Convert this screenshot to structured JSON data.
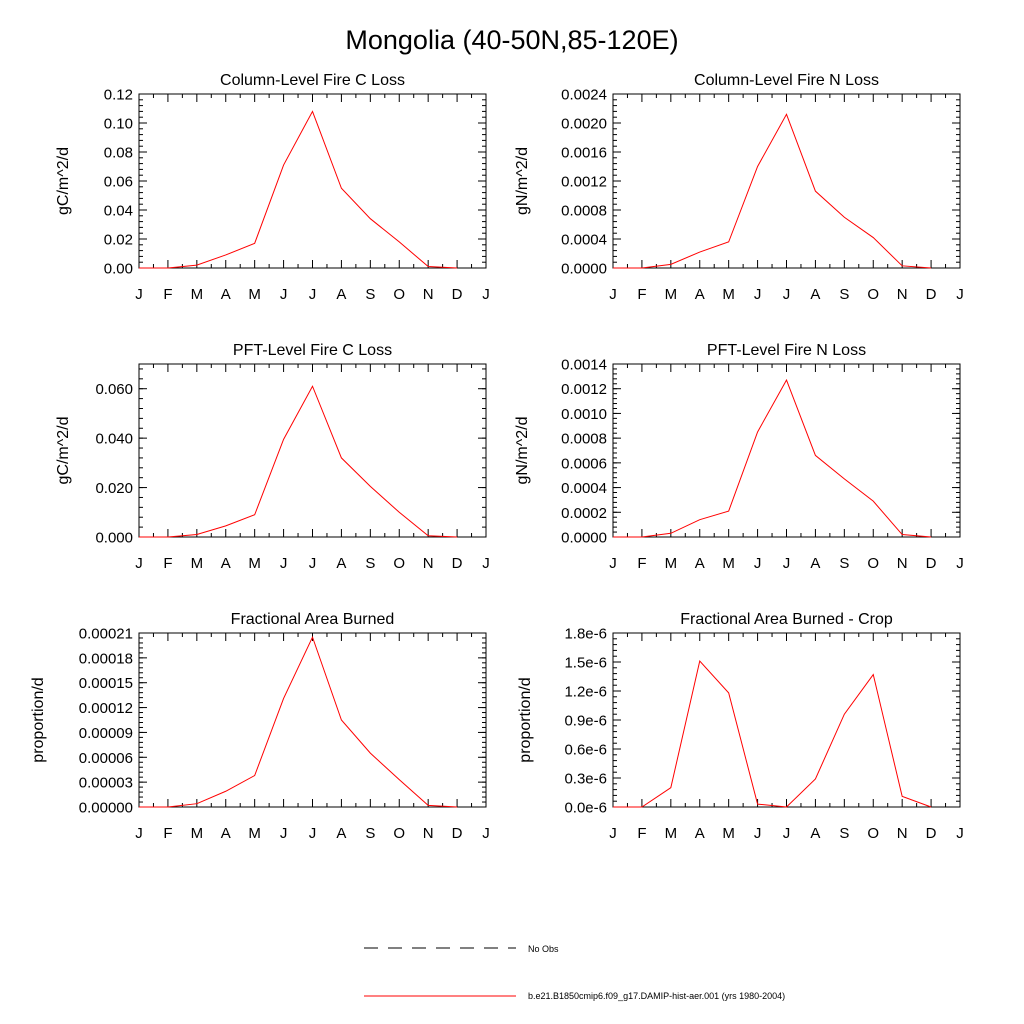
{
  "figure": {
    "title": "Mongolia (40-50N,85-120E)"
  },
  "months": [
    "J",
    "F",
    "M",
    "A",
    "M",
    "J",
    "J",
    "A",
    "S",
    "O",
    "N",
    "D",
    "J"
  ],
  "series_color": "#ff0000",
  "chart_data": [
    {
      "type": "line",
      "title": "Column-Level Fire C Loss",
      "ylabel": "gC/m^2/d",
      "ylim": [
        0,
        0.12
      ],
      "yticks": [
        "0.00",
        "0.02",
        "0.04",
        "0.06",
        "0.08",
        "0.10",
        "0.12"
      ],
      "x": [
        0,
        1,
        2,
        3,
        4,
        5,
        6,
        7,
        8,
        9,
        10,
        11
      ],
      "values": [
        0.0,
        0.0,
        0.002,
        0.009,
        0.017,
        0.071,
        0.108,
        0.055,
        0.034,
        0.018,
        0.001,
        0.0
      ]
    },
    {
      "type": "line",
      "title": "Column-Level Fire N Loss",
      "ylabel": "gN/m^2/d",
      "ylim": [
        0,
        0.0024
      ],
      "yticks": [
        "0.0000",
        "0.0004",
        "0.0008",
        "0.0012",
        "0.0016",
        "0.0020",
        "0.0024"
      ],
      "x": [
        0,
        1,
        2,
        3,
        4,
        5,
        6,
        7,
        8,
        9,
        10,
        11
      ],
      "values": [
        0.0,
        0.0,
        5e-05,
        0.00022,
        0.00036,
        0.0014,
        0.00212,
        0.00106,
        0.0007,
        0.00042,
        3e-05,
        0.0
      ]
    },
    {
      "type": "line",
      "title": "PFT-Level Fire C Loss",
      "ylabel": "gC/m^2/d",
      "ylim": [
        0,
        0.07
      ],
      "yticks": [
        "0.000",
        "0.020",
        "0.040",
        "0.060"
      ],
      "ytick_values": [
        0,
        0.02,
        0.04,
        0.06
      ],
      "x": [
        0,
        1,
        2,
        3,
        4,
        5,
        6,
        7,
        8,
        9,
        10,
        11
      ],
      "values": [
        0.0,
        0.0,
        0.001,
        0.0045,
        0.009,
        0.0395,
        0.061,
        0.032,
        0.0205,
        0.01,
        0.0005,
        0.0
      ]
    },
    {
      "type": "line",
      "title": "PFT-Level Fire N Loss",
      "ylabel": "gN/m^2/d",
      "ylim": [
        0,
        0.0014
      ],
      "yticks": [
        "0.0000",
        "0.0002",
        "0.0004",
        "0.0006",
        "0.0008",
        "0.0010",
        "0.0012",
        "0.0014"
      ],
      "x": [
        0,
        1,
        2,
        3,
        4,
        5,
        6,
        7,
        8,
        9,
        10,
        11
      ],
      "values": [
        0.0,
        0.0,
        3e-05,
        0.00014,
        0.00021,
        0.00085,
        0.00127,
        0.00066,
        0.00047,
        0.00029,
        2e-05,
        0.0
      ]
    },
    {
      "type": "line",
      "title": "Fractional Area Burned",
      "ylabel": "proportion/d",
      "ylim": [
        0,
        0.00021
      ],
      "yticks": [
        "0.00000",
        "0.00003",
        "0.00006",
        "0.00009",
        "0.00012",
        "0.00015",
        "0.00018",
        "0.00021"
      ],
      "x": [
        0,
        1,
        2,
        3,
        4,
        5,
        6,
        7,
        8,
        9,
        10,
        11
      ],
      "values": [
        0.0,
        0.0,
        4e-06,
        1.9e-05,
        3.8e-05,
        0.000131,
        0.000205,
        0.000105,
        6.5e-05,
        3.3e-05,
        2e-06,
        0.0
      ]
    },
    {
      "type": "line",
      "title": "Fractional Area Burned - Crop",
      "ylabel": "proportion/d",
      "ylim": [
        0,
        1.8e-06
      ],
      "yticks": [
        "0.0e-6",
        "0.3e-6",
        "0.6e-6",
        "0.9e-6",
        "1.2e-6",
        "1.5e-6",
        "1.8e-6"
      ],
      "x": [
        0,
        1,
        2,
        3,
        4,
        5,
        6,
        7,
        8,
        9,
        10,
        11
      ],
      "values": [
        0.0,
        0.0,
        2e-07,
        1.51e-06,
        1.18e-06,
        3e-08,
        0.0,
        2.9e-07,
        9.6e-07,
        1.37e-06,
        1.1e-07,
        0.0
      ]
    }
  ],
  "legend": {
    "items": [
      {
        "label": "No Obs",
        "style": "dashed",
        "color": "#000000"
      },
      {
        "label": "b.e21.B1850cmip6.f09_g17.DAMIP-hist-aer.001 (yrs 1980-2004)",
        "style": "solid",
        "color": "#ff0000"
      }
    ]
  }
}
